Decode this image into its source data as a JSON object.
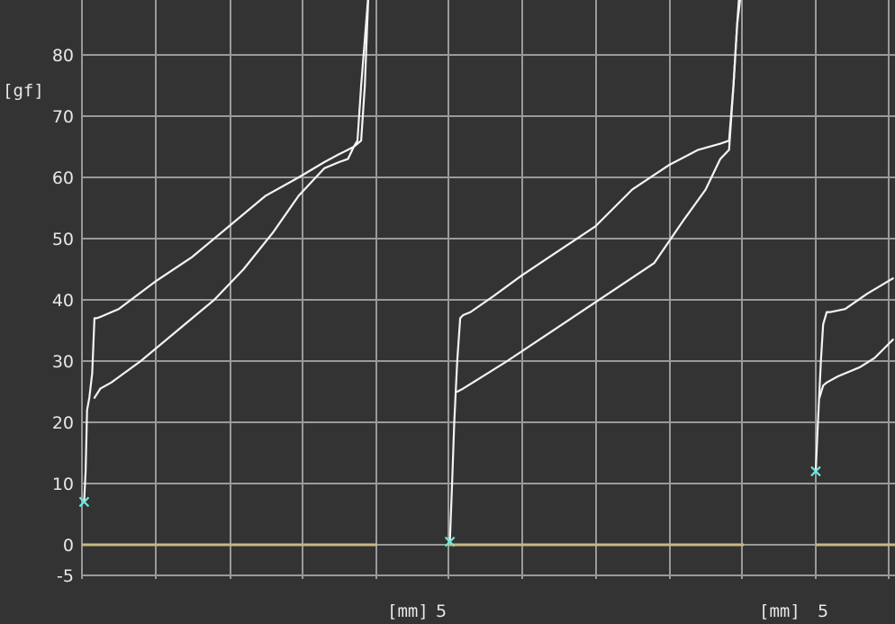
{
  "chart_data": {
    "type": "line",
    "ylabel": "[gf]",
    "ylim": [
      -5,
      90
    ],
    "yticks": [
      "-5",
      "0",
      "10",
      "20",
      "30",
      "40",
      "50",
      "60",
      "70",
      "80"
    ],
    "grid": true,
    "panels": [
      {
        "xlabel": "",
        "xlim": [
          0,
          6
        ],
        "zero_line": [
          0,
          4.02
        ],
        "start_marker": {
          "x": 0.03,
          "y": 7
        },
        "series": [
          {
            "x": [
              0.03,
              0.05,
              0.07,
              0.1,
              0.14,
              0.17,
              0.2,
              0.25,
              0.5,
              1.0,
              1.5,
              2.0,
              2.5,
              2.95,
              3.3,
              3.5,
              3.62,
              3.7,
              3.75,
              3.8,
              3.85,
              3.9
            ],
            "y": [
              7,
              12,
              22,
              24,
              28,
              37,
              37,
              37.2,
              38.5,
              43,
              47,
              52,
              57,
              60,
              62.5,
              63.8,
              64.5,
              65,
              65.5,
              66,
              75,
              90
            ]
          },
          {
            "x": [
              0.17,
              0.25,
              0.4,
              0.8,
              1.3,
              1.8,
              2.2,
              2.6,
              2.95,
              3.3,
              3.5,
              3.62,
              3.7,
              3.75,
              3.8,
              3.9
            ],
            "y": [
              24,
              25.5,
              26.5,
              30,
              35,
              40,
              45,
              51,
              57,
              61.5,
              62.5,
              63,
              65,
              66,
              75,
              90
            ]
          }
        ]
      },
      {
        "xlabel": "[mm]",
        "xlim": [
          0,
          5
        ],
        "xtick_label": "5",
        "zero_line": [
          0,
          4.02
        ],
        "start_marker": {
          "x": 0.02,
          "y": 0.5
        },
        "series": [
          {
            "x": [
              0.02,
              0.05,
              0.08,
              0.12,
              0.16,
              0.2,
              0.3,
              0.6,
              1.0,
              1.5,
              2.0,
              2.5,
              3.0,
              3.4,
              3.7,
              3.82,
              3.88,
              3.93,
              3.96,
              3.98
            ],
            "y": [
              0.5,
              10,
              20,
              30,
              37,
              37.5,
              38,
              40.5,
              44,
              48,
              52,
              58,
              62,
              64.5,
              65.5,
              66,
              75,
              85,
              90,
              90
            ]
          },
          {
            "x": [
              0.12,
              0.2,
              0.4,
              0.8,
              1.3,
              1.8,
              2.3,
              2.8,
              3.2,
              3.5,
              3.7,
              3.82,
              3.88,
              3.93,
              3.98
            ],
            "y": [
              25,
              25.5,
              27,
              30,
              34,
              38,
              42,
              46,
              53,
              58,
              63,
              64.5,
              75,
              85,
              90
            ]
          }
        ]
      },
      {
        "xlabel": "[mm]",
        "xlim": [
          0,
          5
        ],
        "xtick_label": "5",
        "zero_line": [
          0,
          1.08
        ],
        "start_marker": {
          "x": 0.0,
          "y": 12
        },
        "series": [
          {
            "x": [
              0.0,
              0.03,
              0.07,
              0.1,
              0.15,
              0.2,
              0.4,
              0.7,
              1.05
            ],
            "y": [
              12,
              20,
              30,
              36,
              38,
              38,
              38.5,
              41,
              43.5
            ]
          },
          {
            "x": [
              0.05,
              0.1,
              0.15,
              0.3,
              0.6,
              0.8,
              1.05
            ],
            "y": [
              24,
              26,
              26.5,
              27.5,
              29,
              30.5,
              33.5
            ]
          }
        ]
      }
    ]
  },
  "colors": {
    "background": "#333333",
    "grid": "#9a9a9a",
    "curve": "#f4f4f4",
    "zero_line": "#c8b882",
    "marker": "#6fe8e0"
  }
}
